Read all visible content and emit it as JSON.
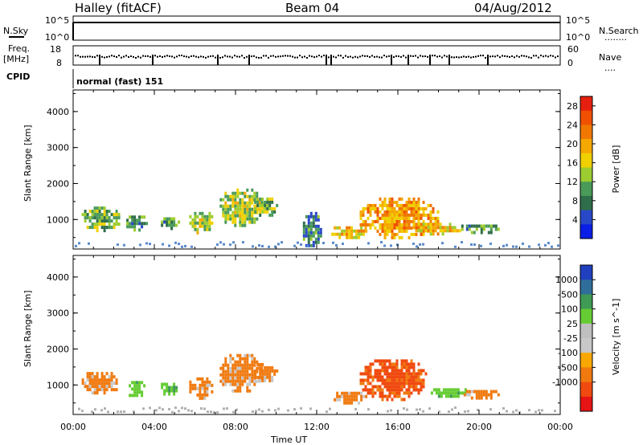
{
  "header": {
    "station": "Halley (fitACF)",
    "beam": "Beam 04",
    "date": "04/Aug/2012"
  },
  "strip_panel": {
    "left_label_top": "N.Sky",
    "left_label_mid": "Freq.",
    "left_label_unit": "[MHz]",
    "left_label_cpid": "CPID",
    "right_label_top": "N.Search",
    "right_label_mid": "Nave",
    "sky_ticks": [
      "10^5",
      "10^0"
    ],
    "search_ticks": [
      "10^5",
      "10^0"
    ],
    "freq_ticks": [
      "18",
      "8"
    ],
    "nave_ticks": [
      "60",
      "0"
    ],
    "cpid_text": "normal (fast) 151"
  },
  "colors": {
    "power": [
      "#0a1ee6",
      "#2848c8",
      "#2f6e4a",
      "#4a9a5a",
      "#9ccc30",
      "#f0d000",
      "#f5a800",
      "#f07800",
      "#f05000",
      "#e62010"
    ],
    "velocity": [
      "#e61414",
      "#f04a10",
      "#f07a10",
      "#f8a800",
      "#c8c8c8",
      "#bfbfbf",
      "#66cc33",
      "#3f9a55",
      "#2f6e9a",
      "#2040c0"
    ]
  },
  "chart_data": [
    {
      "type": "heatmap",
      "name": "power",
      "xlabel": "",
      "ylabel": "Slant Range [km]",
      "y_ticks": [
        "1000",
        "2000",
        "3000",
        "4000"
      ],
      "ylim": [
        180,
        4600
      ],
      "x_ticks": [
        "00:00",
        "04:00",
        "08:00",
        "12:00",
        "16:00",
        "20:00",
        "00:00"
      ],
      "xlim_hours": [
        0,
        24
      ],
      "colorbar": {
        "label": "Power [dB]",
        "ticks": [
          "4",
          "8",
          "12",
          "16",
          "20",
          "24",
          "28"
        ],
        "range": [
          0,
          30
        ]
      },
      "patches": [
        {
          "x": [
            0.3,
            2.3
          ],
          "y": [
            700,
            1450
          ],
          "value": 12
        },
        {
          "x": [
            2.5,
            3.6
          ],
          "y": [
            700,
            1200
          ],
          "value": 10
        },
        {
          "x": [
            4.2,
            5.2
          ],
          "y": [
            750,
            1150
          ],
          "value": 10
        },
        {
          "x": [
            5.6,
            6.9
          ],
          "y": [
            650,
            1300
          ],
          "value": 14
        },
        {
          "x": [
            7.1,
            9.4
          ],
          "y": [
            800,
            1950
          ],
          "value": 14
        },
        {
          "x": [
            8.8,
            10.0
          ],
          "y": [
            1100,
            1700
          ],
          "value": 12
        },
        {
          "x": [
            11.2,
            12.2
          ],
          "y": [
            200,
            1300
          ],
          "value": 8
        },
        {
          "x": [
            12.6,
            14.5
          ],
          "y": [
            500,
            900
          ],
          "value": 18
        },
        {
          "x": [
            14.0,
            18.0
          ],
          "y": [
            500,
            1700
          ],
          "value": 20
        },
        {
          "x": [
            16.5,
            19.2
          ],
          "y": [
            600,
            1000
          ],
          "value": 18
        },
        {
          "x": [
            19.0,
            21.0
          ],
          "y": [
            650,
            950
          ],
          "value": 10
        }
      ]
    },
    {
      "type": "heatmap",
      "name": "velocity",
      "xlabel": "Time UT",
      "ylabel": "Slant Range [km]",
      "y_ticks": [
        "1000",
        "2000",
        "3000",
        "4000"
      ],
      "ylim": [
        180,
        4600
      ],
      "x_ticks": [
        "00:00",
        "04:00",
        "08:00",
        "12:00",
        "16:00",
        "20:00",
        "00:00"
      ],
      "xlim_hours": [
        0,
        24
      ],
      "colorbar": {
        "label": "Velocity [m s^-1]",
        "ticks": [
          "1000",
          "500",
          "100",
          "25",
          "-25",
          "-100",
          "-500",
          "-1000"
        ]
      },
      "patches": [
        {
          "x": [
            0.3,
            2.3
          ],
          "y": [
            750,
            1450
          ],
          "value": -100
        },
        {
          "x": [
            2.5,
            3.6
          ],
          "y": [
            700,
            1200
          ],
          "value": 100
        },
        {
          "x": [
            4.2,
            5.2
          ],
          "y": [
            750,
            1150
          ],
          "value": 100
        },
        {
          "x": [
            5.6,
            6.9
          ],
          "y": [
            650,
            1300
          ],
          "value": -100
        },
        {
          "x": [
            7.1,
            9.4
          ],
          "y": [
            800,
            1950
          ],
          "value": -100
        },
        {
          "x": [
            8.8,
            10.0
          ],
          "y": [
            1100,
            1700
          ],
          "value": -100
        },
        {
          "x": [
            12.6,
            14.5
          ],
          "y": [
            500,
            900
          ],
          "value": -100
        },
        {
          "x": [
            14.0,
            17.5
          ],
          "y": [
            600,
            1800
          ],
          "value": -500
        },
        {
          "x": [
            17.5,
            19.5
          ],
          "y": [
            700,
            1000
          ],
          "value": 100
        },
        {
          "x": [
            19.0,
            21.0
          ],
          "y": [
            650,
            950
          ],
          "value": -100
        }
      ]
    }
  ]
}
